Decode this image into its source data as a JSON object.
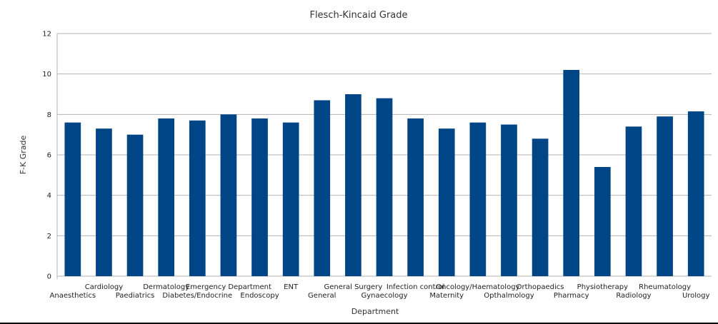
{
  "chart_data": {
    "type": "bar",
    "title": "Flesch-Kincaid Grade",
    "xlabel": "Department",
    "ylabel": "F-K Grade",
    "ylim": [
      0,
      12
    ],
    "yticks": [
      0,
      2,
      4,
      6,
      8,
      10,
      12
    ],
    "grid": true,
    "legend": "none",
    "bar_color": "#004586",
    "categories": [
      "Anaesthetics",
      "Cardiology",
      "Paediatrics",
      "Dermatology",
      "Diabetes/Endocrine",
      "Emergency Department",
      "Endoscopy",
      "ENT",
      "General",
      "General Surgery",
      "Gynaecology",
      "Infection control",
      "Maternity",
      "Oncology/Haematology",
      "Opthalmology",
      "Orthopaedics",
      "Pharmacy",
      "Physiotherapy",
      "Radiology",
      "Rheumatology",
      "Urology"
    ],
    "values": [
      7.6,
      7.3,
      7.0,
      7.8,
      7.7,
      8.0,
      7.8,
      7.6,
      8.7,
      9.0,
      8.8,
      7.8,
      7.3,
      7.6,
      7.5,
      6.8,
      10.2,
      5.4,
      7.4,
      7.9,
      8.15
    ]
  }
}
